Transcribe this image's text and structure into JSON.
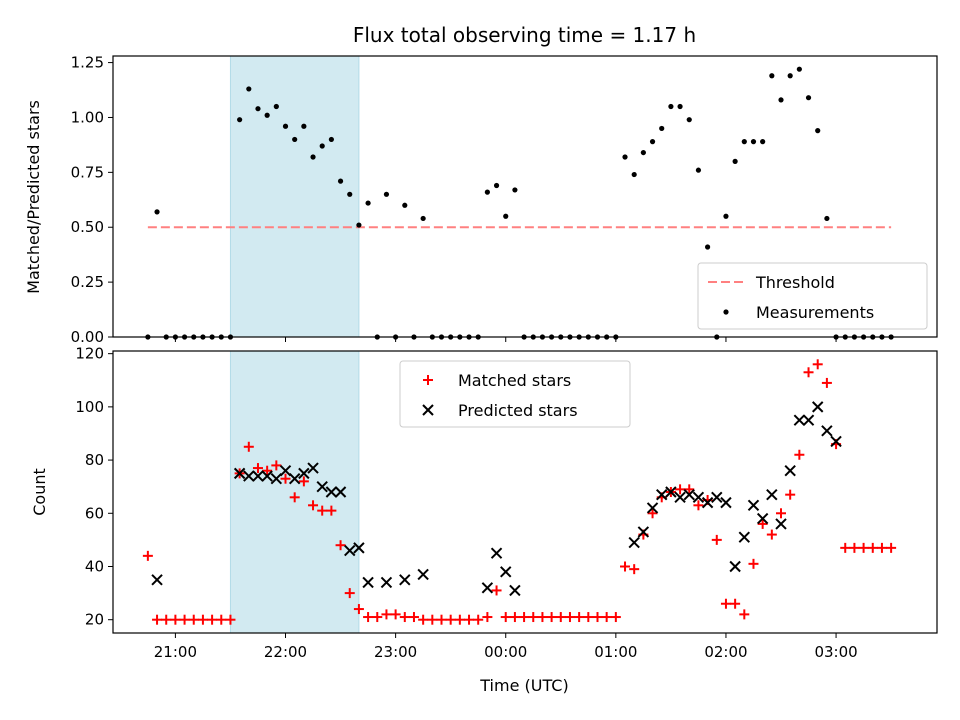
{
  "chart_data": [
    {
      "type": "scatter",
      "title": "Flux total observing time = 1.17 h",
      "xlabel": "",
      "ylabel": "Matched/Predicted stars",
      "ylim": [
        0,
        1.28
      ],
      "xlim": [
        "20:26",
        "03:55"
      ],
      "x_ticks": [
        "21:00",
        "22:00",
        "23:00",
        "00:00",
        "01:00",
        "02:00",
        "03:00"
      ],
      "y_ticks": [
        "0.00",
        "0.25",
        "0.50",
        "0.75",
        "1.00",
        "1.25"
      ],
      "y_tick_values": [
        0,
        0.25,
        0.5,
        0.75,
        1.0,
        1.25
      ],
      "highlight_span": [
        "21:30",
        "22:40"
      ],
      "highlight_color": "#add8e6",
      "legend": {
        "placement": "lower right",
        "entries": [
          "Threshold",
          "Measurements"
        ]
      },
      "series": [
        {
          "name": "Threshold",
          "style": "dashed-line",
          "color": "#ff8080",
          "x": [
            "20:45",
            "03:30"
          ],
          "y": [
            0.5,
            0.5
          ]
        },
        {
          "name": "Measurements",
          "style": "dot",
          "color": "#000000",
          "x": [
            "20:45",
            "20:50",
            "20:55",
            "21:00",
            "21:05",
            "21:10",
            "21:15",
            "21:20",
            "21:25",
            "21:30",
            "21:35",
            "21:40",
            "21:45",
            "21:50",
            "21:55",
            "22:00",
            "22:05",
            "22:10",
            "22:15",
            "22:20",
            "22:25",
            "22:30",
            "22:35",
            "22:40",
            "22:45",
            "22:50",
            "22:55",
            "23:00",
            "23:05",
            "23:10",
            "23:15",
            "23:20",
            "23:25",
            "23:30",
            "23:35",
            "23:40",
            "23:45",
            "23:50",
            "23:55",
            "00:00",
            "00:05",
            "00:10",
            "00:15",
            "00:20",
            "00:25",
            "00:30",
            "00:35",
            "00:40",
            "00:45",
            "00:50",
            "00:55",
            "01:00",
            "01:05",
            "01:10",
            "01:15",
            "01:20",
            "01:25",
            "01:30",
            "01:35",
            "01:40",
            "01:45",
            "01:50",
            "01:55",
            "02:00",
            "02:05",
            "02:10",
            "02:15",
            "02:20",
            "02:25",
            "02:30",
            "02:35",
            "02:40",
            "02:45",
            "02:50",
            "02:55",
            "03:00",
            "03:05",
            "03:10",
            "03:15",
            "03:20",
            "03:25",
            "03:30"
          ],
          "y": [
            0.0,
            0.57,
            0.0,
            0.0,
            0.0,
            0.0,
            0.0,
            0.0,
            0.0,
            0.0,
            0.99,
            1.13,
            1.04,
            1.01,
            1.05,
            0.96,
            0.9,
            0.96,
            0.82,
            0.87,
            0.9,
            0.71,
            0.65,
            0.51,
            0.61,
            0.0,
            0.65,
            0.0,
            0.6,
            0.0,
            0.54,
            0.0,
            0.0,
            0.0,
            0.0,
            0.0,
            0.0,
            0.66,
            0.69,
            0.55,
            0.67,
            0.0,
            0.0,
            0.0,
            0.0,
            0.0,
            0.0,
            0.0,
            0.0,
            0.0,
            0.0,
            0.0,
            0.82,
            0.74,
            0.84,
            0.89,
            0.95,
            1.05,
            1.05,
            0.99,
            0.76,
            0.41,
            0.0,
            0.55,
            0.8,
            0.89,
            0.89,
            0.89,
            1.19,
            1.08,
            1.19,
            1.22,
            1.09,
            0.94,
            0.54,
            0.0,
            0.0,
            0.0,
            0.0,
            0.0,
            0.0,
            0.0
          ]
        }
      ]
    },
    {
      "type": "scatter",
      "title": "",
      "xlabel": "Time (UTC)",
      "ylabel": "Count",
      "ylim": [
        15,
        121
      ],
      "xlim": [
        "20:26",
        "03:55"
      ],
      "x_ticks": [
        "21:00",
        "22:00",
        "23:00",
        "00:00",
        "01:00",
        "02:00",
        "03:00"
      ],
      "y_ticks": [
        "20",
        "40",
        "60",
        "80",
        "100",
        "120"
      ],
      "y_tick_values": [
        20,
        40,
        60,
        80,
        100,
        120
      ],
      "highlight_span": [
        "21:30",
        "22:40"
      ],
      "highlight_color": "#add8e6",
      "legend": {
        "placement": "upper center",
        "entries": [
          "Matched stars",
          "Predicted stars"
        ]
      },
      "series": [
        {
          "name": "Matched stars",
          "marker": "plus",
          "color": "#ff0000",
          "x": [
            "20:45",
            "20:50",
            "20:55",
            "21:00",
            "21:05",
            "21:10",
            "21:15",
            "21:20",
            "21:25",
            "21:30",
            "21:35",
            "21:40",
            "21:45",
            "21:50",
            "21:55",
            "22:00",
            "22:05",
            "22:10",
            "22:15",
            "22:20",
            "22:25",
            "22:30",
            "22:35",
            "22:40",
            "22:45",
            "22:50",
            "22:55",
            "23:00",
            "23:05",
            "23:10",
            "23:15",
            "23:20",
            "23:25",
            "23:30",
            "23:35",
            "23:40",
            "23:45",
            "23:50",
            "23:55",
            "00:00",
            "00:05",
            "00:10",
            "00:15",
            "00:20",
            "00:25",
            "00:30",
            "00:35",
            "00:40",
            "00:45",
            "00:50",
            "00:55",
            "01:00",
            "01:05",
            "01:10",
            "01:15",
            "01:20",
            "01:25",
            "01:30",
            "01:35",
            "01:40",
            "01:45",
            "01:50",
            "01:55",
            "02:00",
            "02:05",
            "02:10",
            "02:15",
            "02:20",
            "02:25",
            "02:30",
            "02:35",
            "02:40",
            "02:45",
            "02:50",
            "02:55",
            "03:00",
            "03:05",
            "03:10",
            "03:15",
            "03:20",
            "03:25",
            "03:30"
          ],
          "y": [
            44,
            20,
            20,
            20,
            20,
            20,
            20,
            20,
            20,
            20,
            75,
            85,
            77,
            76,
            78,
            73,
            66,
            72,
            63,
            61,
            61,
            48,
            30,
            24,
            21,
            21,
            22,
            22,
            21,
            21,
            20,
            20,
            20,
            20,
            20,
            20,
            20,
            21,
            31,
            21,
            21,
            21,
            21,
            21,
            21,
            21,
            21,
            21,
            21,
            21,
            21,
            21,
            40,
            39,
            52,
            60,
            66,
            68,
            69,
            69,
            63,
            65,
            50,
            26,
            26,
            22,
            41,
            56,
            52,
            60,
            67,
            82,
            113,
            116,
            109,
            86,
            47,
            47,
            47,
            47,
            47,
            47
          ]
        },
        {
          "name": "Predicted stars",
          "marker": "x",
          "color": "#000000",
          "x": [
            "20:50",
            "21:35",
            "21:40",
            "21:45",
            "21:50",
            "21:55",
            "22:00",
            "22:05",
            "22:10",
            "22:15",
            "22:20",
            "22:25",
            "22:30",
            "22:35",
            "22:40",
            "22:45",
            "22:55",
            "23:05",
            "23:15",
            "23:50",
            "23:55",
            "00:00",
            "00:05",
            "01:10",
            "01:15",
            "01:20",
            "01:25",
            "01:30",
            "01:35",
            "01:40",
            "01:45",
            "01:50",
            "01:55",
            "02:00",
            "02:05",
            "02:10",
            "02:15",
            "02:20",
            "02:25",
            "02:30",
            "02:35",
            "02:40",
            "02:45",
            "02:50",
            "02:55",
            "03:00"
          ],
          "y": [
            35,
            75,
            74,
            74,
            74,
            73,
            76,
            73,
            75,
            77,
            70,
            68,
            68,
            46,
            47,
            34,
            34,
            35,
            37,
            32,
            45,
            38,
            31,
            49,
            53,
            62,
            67,
            68,
            66,
            67,
            66,
            64,
            66,
            64,
            40,
            51,
            63,
            58,
            67,
            56,
            76,
            95,
            95,
            100,
            91,
            87
          ]
        }
      ]
    }
  ]
}
